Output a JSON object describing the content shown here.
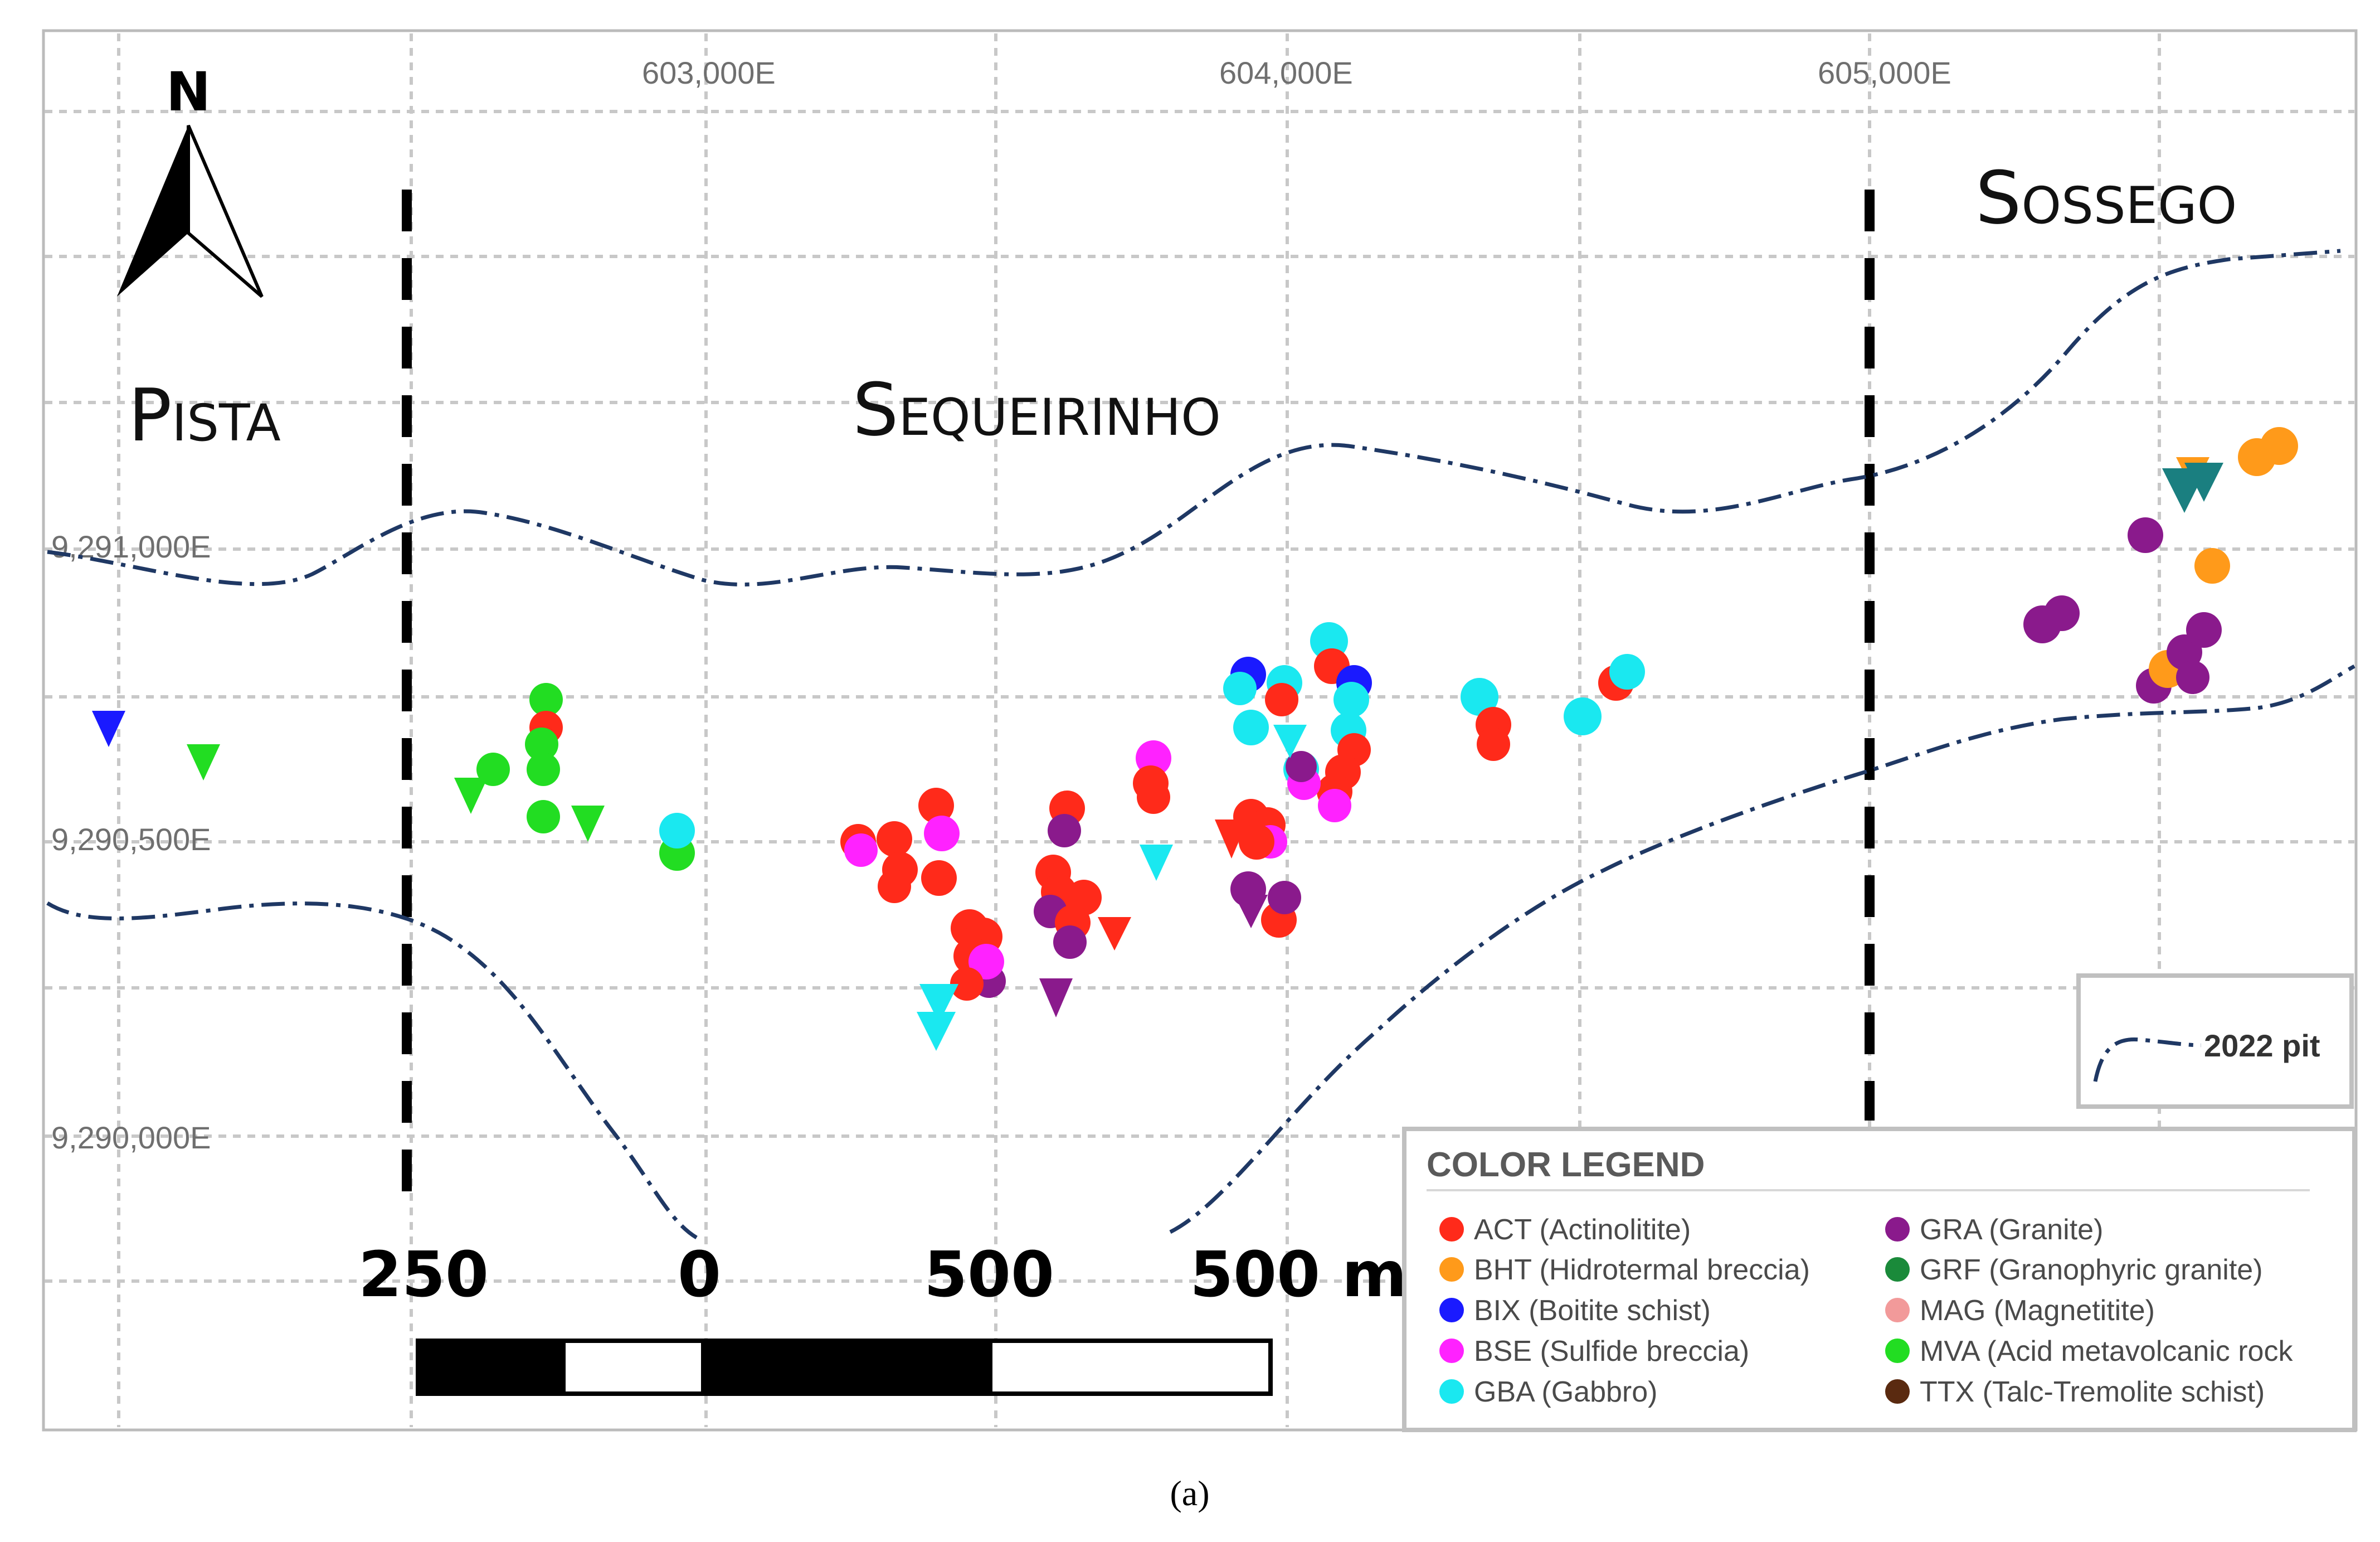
{
  "map": {
    "type": "geological-sample-map",
    "north_label": "N",
    "easting_labels": [
      "603,000E",
      "604,000E",
      "605,000E"
    ],
    "northing_labels": [
      "9,291,000E",
      "9,290,500E",
      "9,290,000E"
    ],
    "zones": [
      {
        "name": "Pista"
      },
      {
        "name": "Sequeirinho"
      },
      {
        "name": "Sossego"
      }
    ],
    "scale_bar": {
      "labels": [
        "250",
        "0",
        "500",
        "500 m"
      ]
    },
    "pit_legend": {
      "label": "2022 pit",
      "color": "#1f3864"
    },
    "color_legend": {
      "title": "COLOR LEGEND",
      "entries": [
        {
          "code": "ACT",
          "label": "ACT (Actinolitite)",
          "color": "#ff2a1a"
        },
        {
          "code": "BHT",
          "label": "BHT (Hidrotermal breccia)",
          "color": "#ff9a1a"
        },
        {
          "code": "BIX",
          "label": "BIX (Boitite schist)",
          "color": "#1a1aff"
        },
        {
          "code": "BSE",
          "label": "BSE (Sulfide breccia)",
          "color": "#ff22ff"
        },
        {
          "code": "GBA",
          "label": "GBA (Gabbro)",
          "color": "#1ae8f0"
        },
        {
          "code": "GRA",
          "label": "GRA (Granite)",
          "color": "#8a1a8c"
        },
        {
          "code": "GRF",
          "label": "GRF (Granophyric granite)",
          "color": "#1a8a3a"
        },
        {
          "code": "MAG",
          "label": "MAG (Magnetitite)",
          "color": "#f29a9a"
        },
        {
          "code": "MVA",
          "label": "MVA (Acid metavolcanic rock",
          "color": "#22dd22"
        },
        {
          "code": "TTX",
          "label": "TTX (Talc-Tremolite schist)",
          "color": "#5a2a10"
        }
      ]
    },
    "caption": "(a)"
  }
}
